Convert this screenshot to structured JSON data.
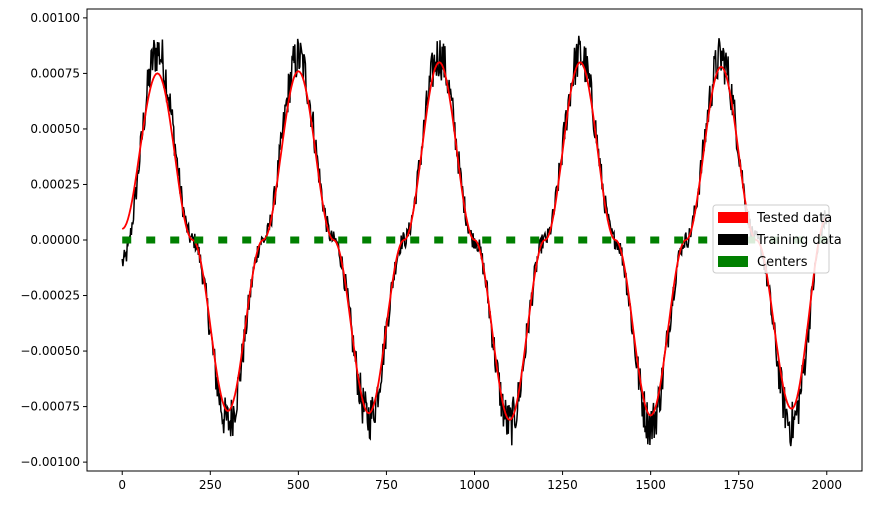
{
  "chart_data": {
    "type": "line",
    "title": "",
    "xlabel": "",
    "ylabel": "",
    "xlim": [
      -100,
      2100
    ],
    "ylim": [
      -0.00104,
      0.00104
    ],
    "xticks": [
      0,
      250,
      500,
      750,
      1000,
      1250,
      1500,
      1750,
      2000
    ],
    "xtick_labels": [
      "0",
      "250",
      "500",
      "750",
      "1000",
      "1250",
      "1500",
      "1750",
      "2000"
    ],
    "yticks": [
      0.001,
      0.00075,
      0.0005,
      0.00025,
      0,
      -0.00025,
      -0.0005,
      -0.00075,
      -0.001
    ],
    "ytick_labels": [
      "0.00100",
      "0.00075",
      "0.00050",
      "0.00025",
      "0.00000",
      "−0.00025",
      "−0.00050",
      "−0.00075",
      "−0.00100"
    ],
    "grid": false,
    "legend_position": "center-right",
    "series": [
      {
        "name": "Training data",
        "color": "#000000",
        "style": "noisy-line",
        "x": [
          0,
          100,
          200,
          300,
          400,
          500,
          600,
          700,
          800,
          900,
          1000,
          1100,
          1200,
          1300,
          1400,
          1500,
          1600,
          1700,
          1800,
          1900,
          2000
        ],
        "y": [
          -0.0001,
          0.00085,
          0.0,
          -0.00082,
          0.0,
          0.00082,
          0.0,
          -0.0008,
          0.0,
          0.00083,
          0.0,
          -0.00083,
          0.0,
          0.00083,
          0.0,
          -0.00083,
          0.0,
          0.00082,
          0.0,
          -0.00083,
          0.0001
        ]
      },
      {
        "name": "Tested data",
        "color": "#ff0000",
        "style": "line",
        "x": [
          0,
          100,
          200,
          300,
          400,
          500,
          600,
          700,
          800,
          900,
          1000,
          1100,
          1200,
          1300,
          1400,
          1500,
          1600,
          1700,
          1800,
          1900,
          2000
        ],
        "y": [
          5e-05,
          0.00075,
          0.0,
          -0.00077,
          0.0,
          0.00076,
          0.0,
          -0.00078,
          0.0,
          0.0008,
          0.0,
          -0.00081,
          0.0,
          0.0008,
          0.0,
          -0.00079,
          0.0,
          0.00078,
          0.0,
          -0.00076,
          0.0001
        ]
      },
      {
        "name": "Centers",
        "color": "#008000",
        "style": "dashed",
        "x": [
          0,
          2000
        ],
        "y": [
          0,
          0
        ]
      }
    ],
    "legend_order": [
      "Tested data",
      "Training data",
      "Centers"
    ]
  }
}
